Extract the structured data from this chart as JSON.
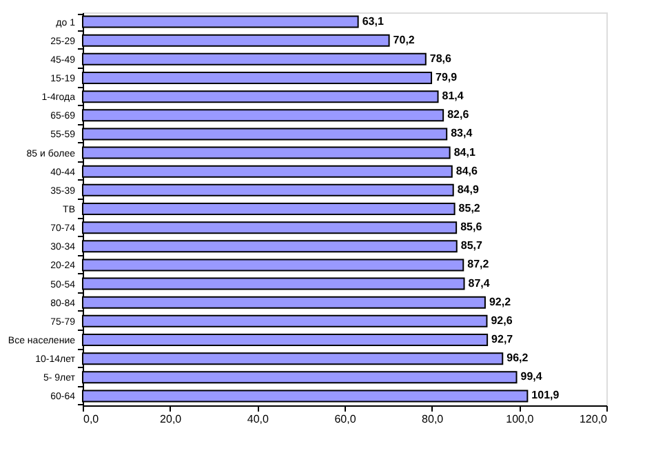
{
  "chart_data": {
    "type": "bar",
    "orientation": "horizontal",
    "categories": [
      "до 1",
      "25-29",
      "45-49",
      "15-19",
      "1-4года",
      "65-69",
      "55-59",
      "85 и более",
      "40-44",
      "35-39",
      "ТВ",
      "70-74",
      "30-34",
      "20-24",
      "50-54",
      "80-84",
      "75-79",
      "Все население",
      "10-14лет",
      "5- 9лет",
      "60-64"
    ],
    "values": [
      63.1,
      70.2,
      78.6,
      79.9,
      81.4,
      82.6,
      83.4,
      84.1,
      84.6,
      84.9,
      85.2,
      85.6,
      85.7,
      87.2,
      87.4,
      92.2,
      92.6,
      92.7,
      96.2,
      99.4,
      101.9
    ],
    "value_labels": [
      "63,1",
      "70,2",
      "78,6",
      "79,9",
      "81,4",
      "82,6",
      "83,4",
      "84,1",
      "84,6",
      "84,9",
      "85,2",
      "85,6",
      "85,7",
      "87,2",
      "87,4",
      "92,2",
      "92,6",
      "92,7",
      "96,2",
      "99,4",
      "101,9"
    ],
    "color": "#9999ff",
    "xlim": [
      0,
      120
    ],
    "xticks": [
      {
        "value": 0,
        "label": "0,0"
      },
      {
        "value": 20,
        "label": "20,0"
      },
      {
        "value": 40,
        "label": "40,0"
      },
      {
        "value": 60,
        "label": "60,0"
      },
      {
        "value": 80,
        "label": "80,0"
      },
      {
        "value": 100,
        "label": "100,0"
      },
      {
        "value": 120,
        "label": "120,0"
      }
    ],
    "grid": false
  }
}
